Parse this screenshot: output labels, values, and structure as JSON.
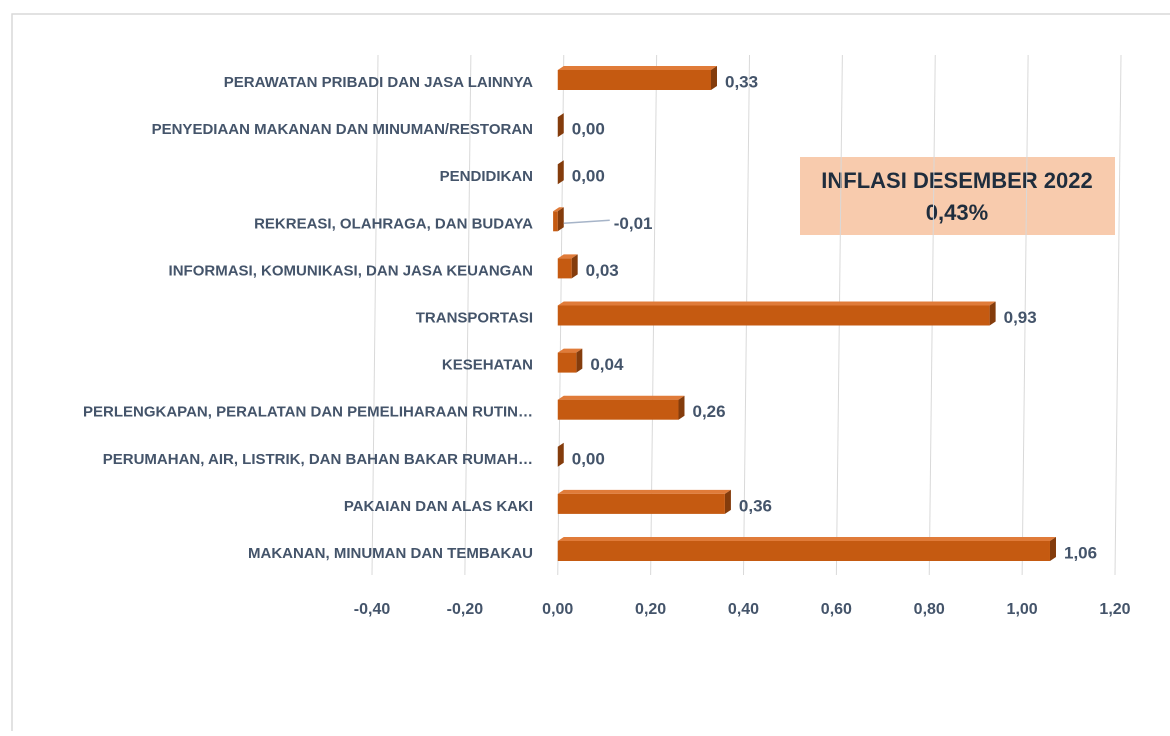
{
  "chart_data": {
    "type": "bar3d_horizontal",
    "categories": [
      "PERAWATAN PRIBADI DAN JASA LAINNYA",
      "PENYEDIAAN MAKANAN DAN MINUMAN/RESTORAN",
      "PENDIDIKAN",
      "REKREASI, OLAHRAGA, DAN BUDAYA",
      "INFORMASI, KOMUNIKASI, DAN JASA KEUANGAN",
      "TRANSPORTASI",
      "KESEHATAN",
      "PERLENGKAPAN, PERALATAN DAN PEMELIHARAAN RUTIN…",
      "PERUMAHAN, AIR, LISTRIK, DAN BAHAN BAKAR RUMAH…",
      "PAKAIAN DAN ALAS KAKI",
      "MAKANAN, MINUMAN DAN TEMBAKAU"
    ],
    "values": [
      0.33,
      0,
      0,
      -0.01,
      0.03,
      0.93,
      0.04,
      0.26,
      0,
      0.36,
      1.06
    ],
    "value_labels": [
      "0,33",
      "0,00",
      "0,00",
      "-0,01",
      "0,03",
      "0,93",
      "0,04",
      "0,26",
      "0,00",
      "0,36",
      "1,06"
    ],
    "color": "#c55a11",
    "xlim": [
      -0.4,
      1.2
    ],
    "xticks": [
      {
        "value": -0.4,
        "label": "-0,40"
      },
      {
        "value": -0.2,
        "label": "-0,20"
      },
      {
        "value": 0,
        "label": "0,00"
      },
      {
        "value": 0.2,
        "label": "0,20"
      },
      {
        "value": 0.4,
        "label": "0,40"
      },
      {
        "value": 0.6,
        "label": "0,60"
      },
      {
        "value": 0.8,
        "label": "0,80"
      },
      {
        "value": 1.0,
        "label": "1,00"
      },
      {
        "value": 1.2,
        "label": "1,20"
      }
    ],
    "grid": true,
    "annotation": {
      "title": "INFLASI DESEMBER 2022",
      "value": "0,43%"
    }
  }
}
